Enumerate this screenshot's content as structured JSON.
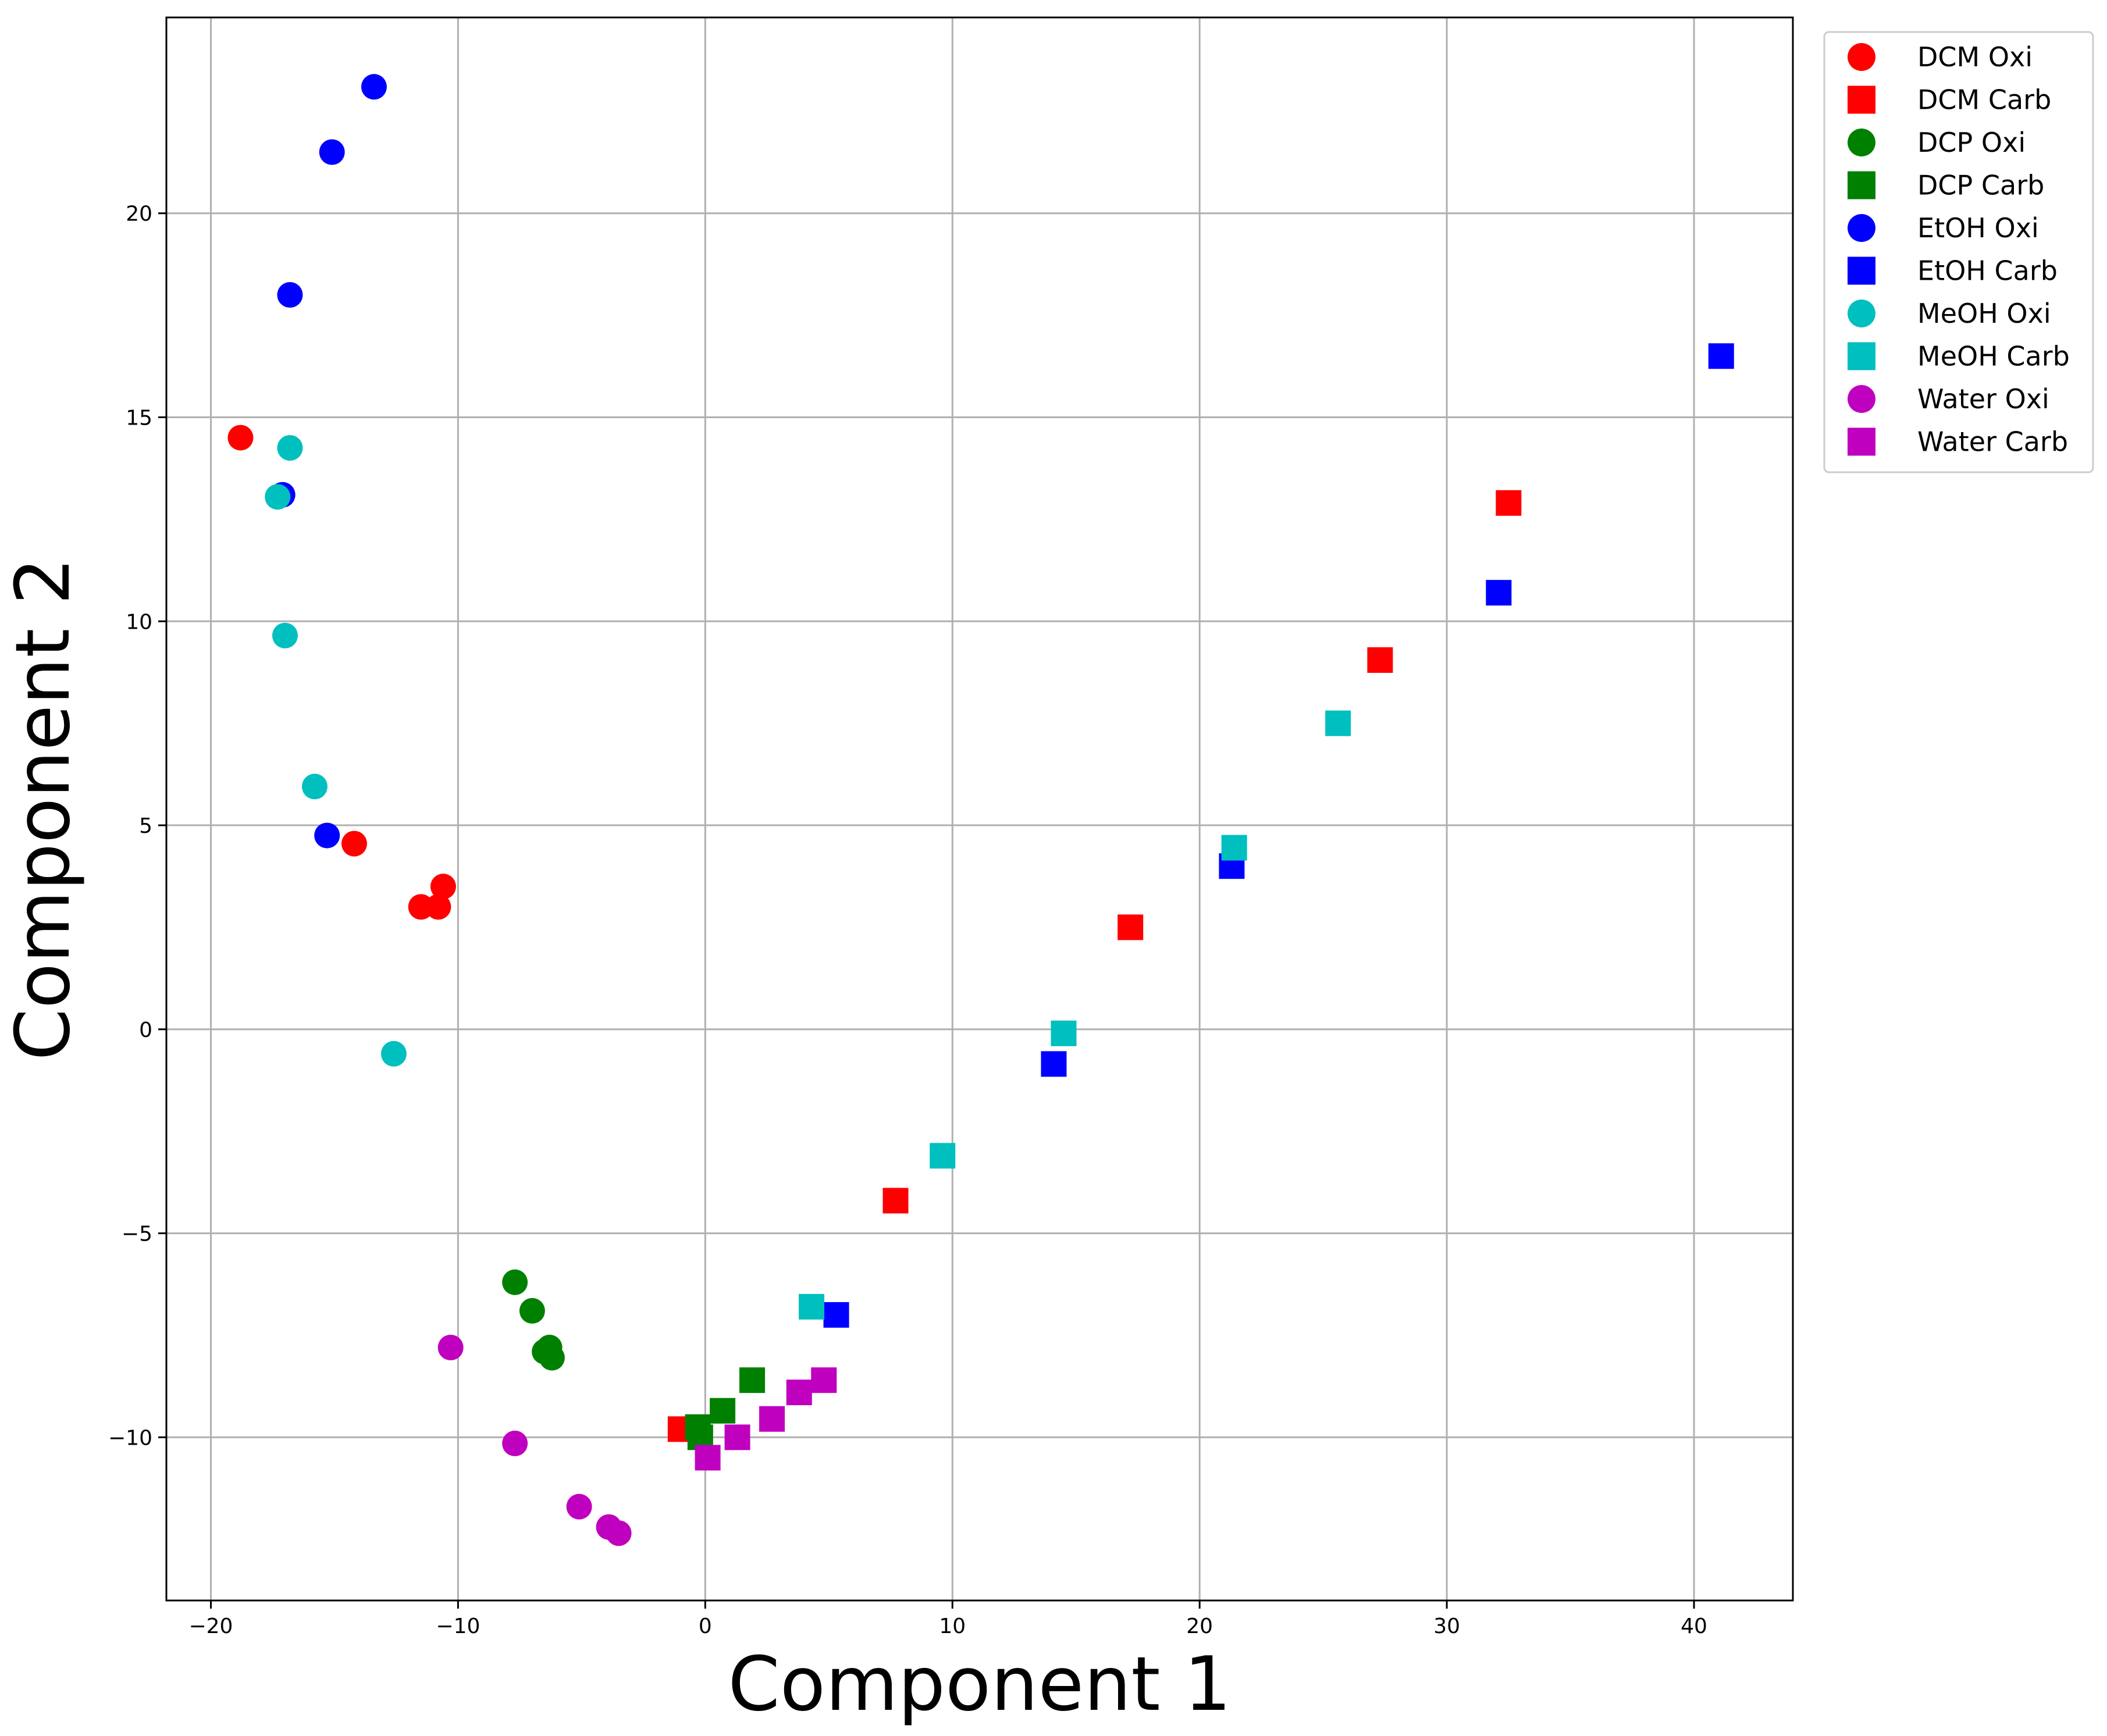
{
  "chart_data": {
    "type": "scatter",
    "xlabel": "Component 1",
    "ylabel": "Component 2",
    "xlim": [
      -21.8,
      44
    ],
    "ylim": [
      -14,
      24.8
    ],
    "xticks": [
      -20,
      -10,
      0,
      10,
      20,
      30,
      40
    ],
    "xtick_labels": [
      "−20",
      "−10",
      "0",
      "10",
      "20",
      "30",
      "40"
    ],
    "yticks": [
      -10,
      -5,
      0,
      5,
      10,
      15,
      20
    ],
    "ytick_labels": [
      "−10",
      "−5",
      "0",
      "5",
      "10",
      "15",
      "20"
    ],
    "grid": true,
    "legend_position": "outside-right-top",
    "series": [
      {
        "name": "DCM Oxi",
        "marker": "circle",
        "color": "#ff0000",
        "points": [
          [
            -18.8,
            14.5
          ],
          [
            -14.2,
            4.55
          ],
          [
            -10.6,
            3.5
          ],
          [
            -10.8,
            3.0
          ],
          [
            -11.5,
            3.0
          ]
        ]
      },
      {
        "name": "DCM Carb",
        "marker": "square",
        "color": "#ff0000",
        "points": [
          [
            32.5,
            12.9
          ],
          [
            27.3,
            9.05
          ],
          [
            17.2,
            2.5
          ],
          [
            7.7,
            -4.2
          ],
          [
            -1.0,
            -9.8
          ]
        ]
      },
      {
        "name": "DCP Oxi",
        "marker": "circle",
        "color": "#008000",
        "points": [
          [
            -7.7,
            -6.2
          ],
          [
            -7.0,
            -6.9
          ],
          [
            -6.3,
            -7.8
          ],
          [
            -6.5,
            -7.9
          ],
          [
            -6.2,
            -8.05
          ]
        ]
      },
      {
        "name": "DCP Carb",
        "marker": "square",
        "color": "#008000",
        "points": [
          [
            1.9,
            -8.6
          ],
          [
            0.7,
            -9.35
          ],
          [
            -0.3,
            -9.75
          ],
          [
            -0.2,
            -10.0
          ]
        ]
      },
      {
        "name": "EtOH Oxi",
        "marker": "circle",
        "color": "#0000ff",
        "points": [
          [
            -13.4,
            23.1
          ],
          [
            -15.1,
            21.5
          ],
          [
            -16.8,
            18.0
          ],
          [
            -17.1,
            13.1
          ],
          [
            -15.3,
            4.75
          ]
        ]
      },
      {
        "name": "EtOH Carb",
        "marker": "square",
        "color": "#0000ff",
        "points": [
          [
            41.1,
            16.5
          ],
          [
            32.1,
            10.7
          ],
          [
            21.3,
            4.0
          ],
          [
            14.1,
            -0.85
          ],
          [
            5.3,
            -7.0
          ]
        ]
      },
      {
        "name": "MeOH Oxi",
        "marker": "circle",
        "color": "#00bfbf",
        "points": [
          [
            -16.8,
            14.25
          ],
          [
            -17.3,
            13.05
          ],
          [
            -17.0,
            9.65
          ],
          [
            -15.8,
            5.95
          ],
          [
            -12.6,
            -0.6
          ]
        ]
      },
      {
        "name": "MeOH Carb",
        "marker": "square",
        "color": "#00bfbf",
        "points": [
          [
            25.6,
            7.5
          ],
          [
            21.4,
            4.45
          ],
          [
            14.5,
            -0.1
          ],
          [
            9.6,
            -3.1
          ],
          [
            4.3,
            -6.8
          ]
        ]
      },
      {
        "name": "Water Oxi",
        "marker": "circle",
        "color": "#bf00bf",
        "points": [
          [
            -10.3,
            -7.8
          ],
          [
            -7.7,
            -10.15
          ],
          [
            -5.1,
            -11.7
          ],
          [
            -3.9,
            -12.2
          ],
          [
            -3.5,
            -12.35
          ]
        ]
      },
      {
        "name": "Water Carb",
        "marker": "square",
        "color": "#bf00bf",
        "points": [
          [
            4.8,
            -8.6
          ],
          [
            3.8,
            -8.9
          ],
          [
            2.7,
            -9.55
          ],
          [
            1.3,
            -10.0
          ],
          [
            0.1,
            -10.5
          ]
        ]
      }
    ]
  }
}
